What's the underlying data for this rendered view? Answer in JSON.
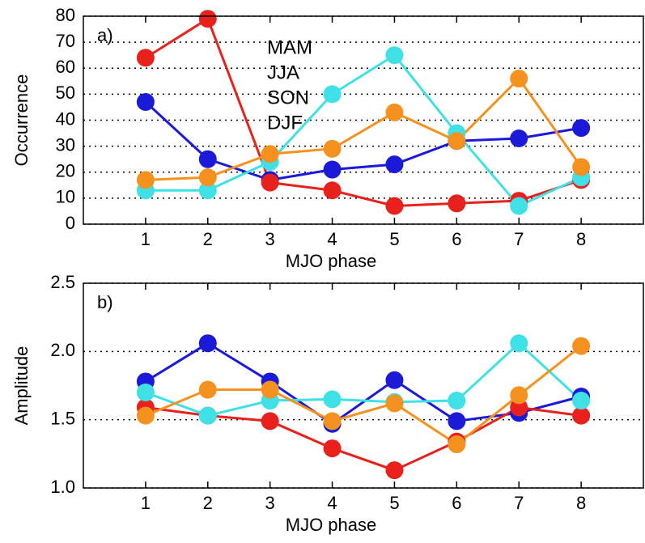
{
  "chart_data": [
    {
      "type": "line",
      "panel_label": "a)",
      "xlabel": "MJO phase",
      "ylabel": "Occurrence",
      "x": [
        1,
        2,
        3,
        4,
        5,
        6,
        7,
        8
      ],
      "xlim": [
        0,
        9
      ],
      "xticks": [
        1,
        2,
        3,
        4,
        5,
        6,
        7,
        8
      ],
      "ylim": [
        0,
        80
      ],
      "yticks": [
        0,
        10,
        20,
        30,
        40,
        50,
        60,
        70,
        80
      ],
      "grid": true,
      "legend": true,
      "series": [
        {
          "name": "MAM",
          "color": "#1a1ad8",
          "values": [
            47,
            25,
            17,
            21,
            23,
            32,
            33,
            37
          ]
        },
        {
          "name": "JJA",
          "color": "#e8211c",
          "values": [
            64,
            79,
            16,
            13,
            7,
            8,
            9,
            17
          ]
        },
        {
          "name": "SON",
          "color": "#3fe0e6",
          "values": [
            13,
            13,
            24,
            50,
            65,
            35,
            7,
            18
          ]
        },
        {
          "name": "DJF",
          "color": "#f5921f",
          "values": [
            17,
            18,
            27,
            29,
            43,
            32,
            56,
            22
          ]
        }
      ]
    },
    {
      "type": "line",
      "panel_label": "b)",
      "xlabel": "MJO phase",
      "ylabel": "Amplitude",
      "x": [
        1,
        2,
        3,
        4,
        5,
        6,
        7,
        8
      ],
      "xlim": [
        0,
        9
      ],
      "xticks": [
        1,
        2,
        3,
        4,
        5,
        6,
        7,
        8
      ],
      "ylim": [
        1.0,
        2.5
      ],
      "yticks": [
        {
          "value": 1.0,
          "label": "1.0"
        },
        1.5,
        {
          "value": 2.0,
          "label": "2.0"
        },
        2.5
      ],
      "grid": true,
      "legend": false,
      "series": [
        {
          "name": "MAM",
          "color": "#1a1ad8",
          "values": [
            1.78,
            2.06,
            1.78,
            1.47,
            1.79,
            1.49,
            1.55,
            1.67
          ]
        },
        {
          "name": "JJA",
          "color": "#e8211c",
          "values": [
            1.59,
            1.53,
            1.49,
            1.29,
            1.13,
            1.34,
            1.59,
            1.53
          ]
        },
        {
          "name": "SON",
          "color": "#3fe0e6",
          "values": [
            1.7,
            1.53,
            1.64,
            1.65,
            1.63,
            1.64,
            2.06,
            1.64
          ]
        },
        {
          "name": "DJF",
          "color": "#f5921f",
          "values": [
            1.53,
            1.72,
            1.72,
            1.49,
            1.62,
            1.32,
            1.68,
            2.04
          ]
        }
      ]
    }
  ]
}
